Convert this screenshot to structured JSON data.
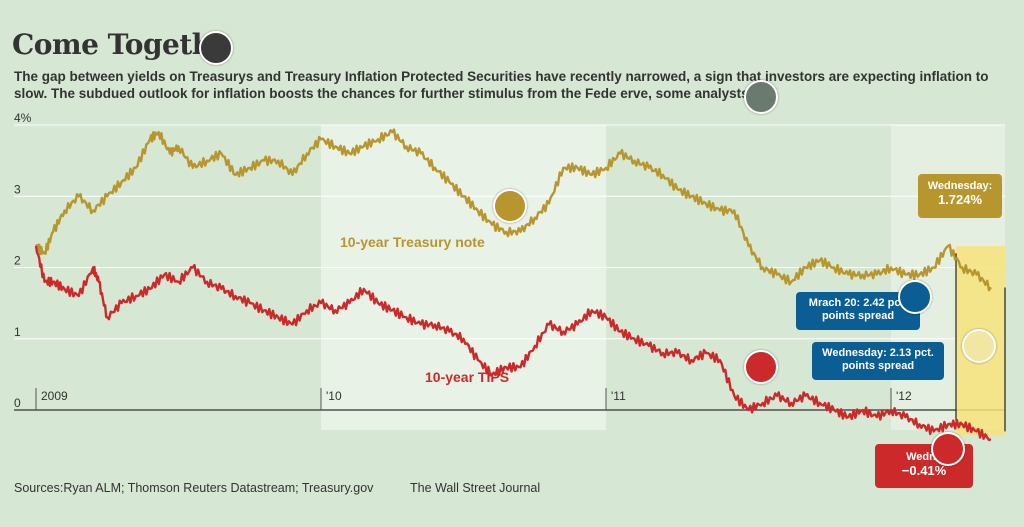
{
  "header": {
    "title": "Come Togeth",
    "subtitle": "The gap between yields on Treasurys and Treasury Inflation Protected Securities have recently narrowed, a sign that investors are expecting inflation to slow. The subdued outlook for inflation boosts the chances for further stimulus from the Fede          erve, some analysts say."
  },
  "footer": {
    "sources": "Sources:Ryan ALM; Thomson Reuters Datastream; Treasury.gov",
    "publisher": "The Wall Street Journal"
  },
  "colors": {
    "background": "#d6e7d3",
    "band_light": "#e9f2e7",
    "treasury": "#b8962e",
    "tips": "#cc2a2a",
    "spread_box": "#f7e27a",
    "blue_callout": "#0b5e94",
    "marker_dark": "#3a3a3a",
    "marker_gray": "#6b7a6e",
    "marker_gold": "#b8962e",
    "marker_blue": "#0b5e94",
    "marker_pale": "#f2e6a3",
    "marker_red": "#cc2a2a"
  },
  "callouts": {
    "treasury_wed_label": "Wednesday:",
    "treasury_wed_value": "1.724%",
    "march_spread_line1": "Mrach 20: 2.42 pct.",
    "march_spread_line2": "points spread",
    "wed_spread_line1": "Wednesday: 2.13 pct.",
    "wed_spread_line2": "points spread",
    "tips_wed_label": "Wedne",
    "tips_wed_value": "−0.41%"
  },
  "markers": [
    {
      "name": "dark-marker",
      "color": "marker_dark"
    },
    {
      "name": "gray-marker",
      "color": "marker_gray"
    },
    {
      "name": "gold-marker",
      "color": "marker_gold"
    },
    {
      "name": "blue-marker",
      "color": "marker_blue"
    },
    {
      "name": "pale-marker",
      "color": "marker_pale"
    },
    {
      "name": "red-marker-1",
      "color": "marker_red"
    },
    {
      "name": "red-marker-2",
      "color": "marker_red"
    }
  ],
  "chart_data": {
    "type": "line",
    "title": "Come Togeth",
    "x_tick_labels": [
      "2009",
      "'10",
      "'11",
      "'12"
    ],
    "y_ticks": [
      0,
      1,
      2,
      3,
      4
    ],
    "y_tick_labels": [
      "0",
      "1",
      "2",
      "3",
      "4%"
    ],
    "ylim": [
      -0.6,
      4.1
    ],
    "grid": true,
    "x_unit": "years since start of 2009",
    "xlim": [
      0,
      3.4
    ],
    "series": [
      {
        "name": "10-year Treasury note",
        "color": "#b8962e",
        "x": [
          0,
          0.03,
          0.06,
          0.1,
          0.15,
          0.2,
          0.25,
          0.3,
          0.35,
          0.4,
          0.43,
          0.47,
          0.5,
          0.55,
          0.6,
          0.65,
          0.7,
          0.75,
          0.8,
          0.85,
          0.9,
          0.95,
          1.0,
          1.05,
          1.1,
          1.15,
          1.2,
          1.25,
          1.3,
          1.35,
          1.4,
          1.45,
          1.5,
          1.55,
          1.6,
          1.65,
          1.7,
          1.75,
          1.8,
          1.85,
          1.9,
          1.95,
          2.0,
          2.05,
          2.1,
          2.15,
          2.2,
          2.25,
          2.3,
          2.35,
          2.4,
          2.45,
          2.5,
          2.55,
          2.6,
          2.65,
          2.7,
          2.75,
          2.8,
          2.85,
          2.9,
          2.95,
          3.0,
          3.05,
          3.1,
          3.15,
          3.2,
          3.25,
          3.3,
          3.35
        ],
        "values": [
          2.3,
          2.2,
          2.5,
          2.8,
          3.0,
          2.8,
          3.0,
          3.2,
          3.4,
          3.8,
          3.9,
          3.6,
          3.7,
          3.4,
          3.5,
          3.6,
          3.3,
          3.4,
          3.5,
          3.5,
          3.3,
          3.6,
          3.8,
          3.7,
          3.6,
          3.7,
          3.8,
          3.9,
          3.7,
          3.6,
          3.4,
          3.2,
          3.0,
          2.8,
          2.6,
          2.5,
          2.5,
          2.7,
          2.9,
          3.4,
          3.4,
          3.3,
          3.4,
          3.6,
          3.5,
          3.4,
          3.3,
          3.1,
          3.0,
          2.9,
          2.8,
          2.8,
          2.3,
          2.0,
          1.9,
          1.8,
          2.0,
          2.1,
          2.0,
          1.9,
          1.9,
          1.9,
          2.0,
          1.9,
          1.9,
          2.0,
          2.3,
          2.0,
          1.9,
          1.72
        ]
      },
      {
        "name": "10-year TIPS",
        "color": "#cc2a2a",
        "x": [
          0,
          0.03,
          0.06,
          0.1,
          0.15,
          0.2,
          0.22,
          0.25,
          0.3,
          0.35,
          0.4,
          0.45,
          0.5,
          0.55,
          0.6,
          0.65,
          0.7,
          0.75,
          0.8,
          0.85,
          0.9,
          0.95,
          1.0,
          1.05,
          1.1,
          1.15,
          1.2,
          1.25,
          1.3,
          1.35,
          1.4,
          1.45,
          1.5,
          1.55,
          1.6,
          1.65,
          1.7,
          1.75,
          1.8,
          1.85,
          1.9,
          1.95,
          2.0,
          2.05,
          2.1,
          2.15,
          2.2,
          2.25,
          2.3,
          2.35,
          2.4,
          2.45,
          2.5,
          2.55,
          2.6,
          2.65,
          2.7,
          2.75,
          2.8,
          2.85,
          2.9,
          2.95,
          3.0,
          3.05,
          3.1,
          3.15,
          3.2,
          3.25,
          3.3,
          3.35
        ],
        "values": [
          2.3,
          1.8,
          1.8,
          1.7,
          1.6,
          2.0,
          1.8,
          1.3,
          1.5,
          1.6,
          1.7,
          1.9,
          1.8,
          2.0,
          1.8,
          1.7,
          1.6,
          1.5,
          1.4,
          1.3,
          1.2,
          1.4,
          1.5,
          1.4,
          1.5,
          1.7,
          1.5,
          1.4,
          1.3,
          1.2,
          1.2,
          1.1,
          1.0,
          0.7,
          0.5,
          0.6,
          0.6,
          0.9,
          1.2,
          1.1,
          1.2,
          1.4,
          1.3,
          1.1,
          1.0,
          0.9,
          0.8,
          0.8,
          0.7,
          0.8,
          0.7,
          0.2,
          0.0,
          0.1,
          0.2,
          0.1,
          0.2,
          0.1,
          0.0,
          -0.1,
          0.0,
          -0.1,
          0.0,
          -0.1,
          -0.2,
          -0.3,
          -0.2,
          -0.2,
          -0.3,
          -0.41
        ]
      }
    ],
    "series_labels": {
      "treasury": "10-year Treasury note",
      "tips": "10-year TIPS"
    },
    "annotations": [
      {
        "text": "Wednesday: 1.724%",
        "series": "10-year Treasury note"
      },
      {
        "text": "Mrach 20: 2.42 pct. points spread"
      },
      {
        "text": "Wednesday: 2.13 pct. points spread"
      },
      {
        "text": "Wedne −0.41%",
        "series": "10-year TIPS"
      }
    ]
  }
}
